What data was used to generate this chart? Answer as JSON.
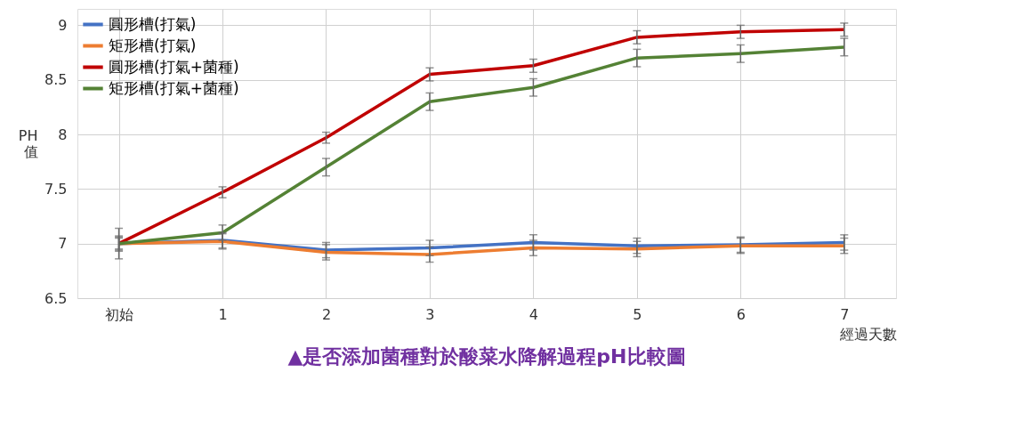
{
  "chart_data": {
    "type": "line",
    "title": "▲是否添加菌種對於酸菜水降解過程pH比較圖",
    "xlabel": "經過天數",
    "ylabel": "PH 值",
    "categories": [
      "初始",
      "1",
      "2",
      "3",
      "4",
      "5",
      "6",
      "7"
    ],
    "series": [
      {
        "name": "圓形槽(打氣)",
        "color": "#4472c4",
        "values": [
          7.0,
          7.03,
          6.94,
          6.96,
          7.01,
          6.98,
          6.99,
          7.01
        ],
        "errors": [
          0.14,
          0.07,
          0.07,
          0.07,
          0.07,
          0.07,
          0.07,
          0.07
        ]
      },
      {
        "name": "矩形槽(打氣)",
        "color": "#ed7d31",
        "values": [
          7.0,
          7.02,
          6.92,
          6.9,
          6.96,
          6.95,
          6.98,
          6.98
        ],
        "errors": [
          0.07,
          0.07,
          0.07,
          0.07,
          0.07,
          0.07,
          0.07,
          0.07
        ]
      },
      {
        "name": "圓形槽(打氣+菌種)",
        "color": "#c00000",
        "values": [
          7.0,
          7.47,
          7.97,
          8.55,
          8.63,
          8.89,
          8.94,
          8.96
        ],
        "errors": [
          0.06,
          0.05,
          0.05,
          0.06,
          0.06,
          0.06,
          0.06,
          0.06
        ]
      },
      {
        "name": "矩形槽(打氣+菌種)",
        "color": "#548235",
        "values": [
          7.0,
          7.1,
          7.7,
          8.3,
          8.43,
          8.7,
          8.74,
          8.8
        ],
        "errors": [
          0.05,
          0.07,
          0.08,
          0.08,
          0.08,
          0.08,
          0.08,
          0.08
        ]
      }
    ],
    "ylim": [
      6.5,
      9.15
    ],
    "yticks": [
      6.5,
      7,
      7.5,
      8,
      8.5,
      9
    ],
    "grid": true,
    "legend": "top left",
    "marker": "none",
    "line_style": "solid"
  }
}
